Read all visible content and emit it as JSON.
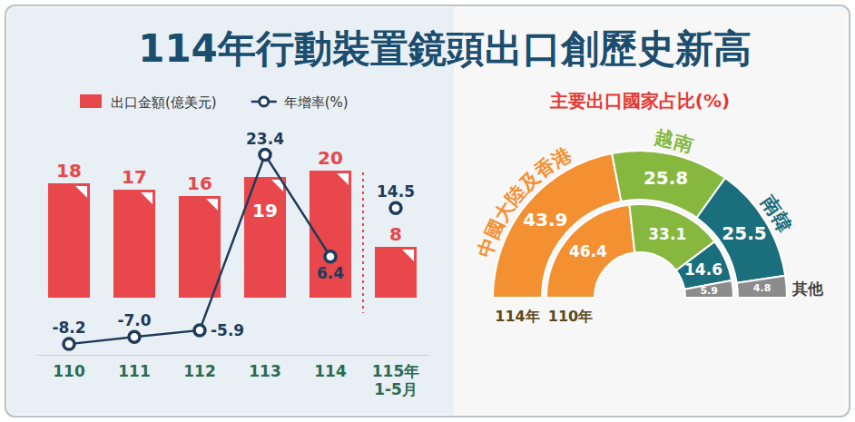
{
  "title": "114年行動裝置鏡頭出口創歷史新高",
  "chart_data": [
    {
      "type": "bar",
      "categories": [
        "110",
        "111",
        "112",
        "113",
        "114",
        "115年\n1-5月"
      ],
      "series": [
        {
          "name": "出口金額(億美元)",
          "type": "bar",
          "color": "#e8474c",
          "values": [
            18,
            17,
            16,
            19,
            20,
            8
          ]
        },
        {
          "name": "年增率(%)",
          "type": "line",
          "axis": "y2",
          "color": "#1f3b5a",
          "marker": "circle",
          "values": [
            -8.2,
            -7.0,
            -5.9,
            23.4,
            6.4,
            null
          ],
          "value_labels": [
            "-8.2",
            "-7.0",
            "-5.9",
            "23.4",
            "6.4",
            null
          ]
        },
        {
          "type": "scatter",
          "axis": "y2",
          "color": "#1f3b5a",
          "marker": "circle",
          "values": [
            null,
            null,
            null,
            null,
            null,
            14.5
          ]
        }
      ],
      "ylim": [
        -9,
        24
      ],
      "y2lim": [
        -10,
        25
      ],
      "data_labels": true,
      "tick_labels": "x",
      "legend": "top-left"
    },
    {
      "type": "donut",
      "title": "主要出口國家占比(%)",
      "categories": [
        "中國大陸及香港",
        "越南",
        "南韓",
        "其他"
      ],
      "colors": [
        "#f39031",
        "#86b83f",
        "#1b6e7b",
        "#8c8c8c"
      ],
      "series": [
        {
          "name": "114年",
          "values": [
            43.9,
            25.8,
            25.5,
            4.8
          ]
        },
        {
          "name": "110年",
          "values": [
            46.4,
            33.1,
            14.6,
            5.9
          ]
        }
      ],
      "data_labels": true
    }
  ]
}
